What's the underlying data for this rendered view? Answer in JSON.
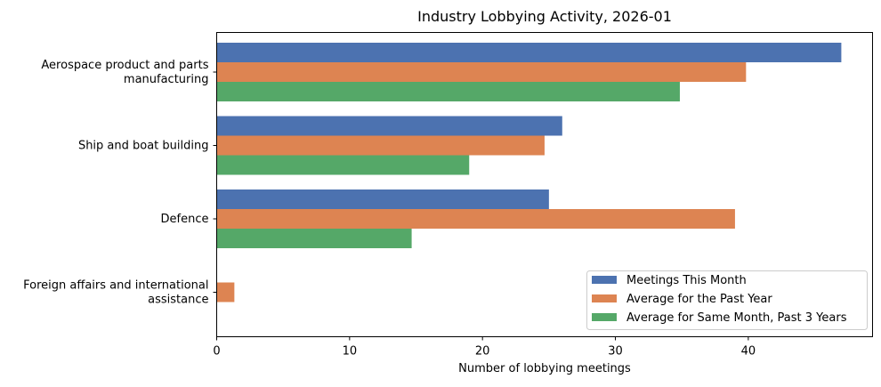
{
  "chart_data": {
    "type": "bar",
    "orientation": "horizontal",
    "title": "Industry Lobbying Activity, 2026-01",
    "xlabel": "Number of lobbying meetings",
    "ylabel": "",
    "xlim": [
      0,
      49.35
    ],
    "xticks": [
      0,
      10,
      20,
      30,
      40
    ],
    "grid": false,
    "legend_position": "bottom-right",
    "categories": [
      [
        "Aerospace product and parts",
        "manufacturing"
      ],
      [
        "Ship and boat building"
      ],
      [
        "Defence"
      ],
      [
        "Foreign affairs and international",
        "assistance"
      ]
    ],
    "series": [
      {
        "name": "Meetings This Month",
        "color": "#4c72b0",
        "values": [
          47,
          26,
          25,
          0
        ]
      },
      {
        "name": "Average for the Past Year",
        "color": "#dd8452",
        "values": [
          39.83,
          24.67,
          39,
          1.33
        ]
      },
      {
        "name": "Average for Same Month, Past 3 Years",
        "color": "#55a868",
        "values": [
          34.85,
          19,
          14.67,
          0
        ]
      }
    ]
  }
}
